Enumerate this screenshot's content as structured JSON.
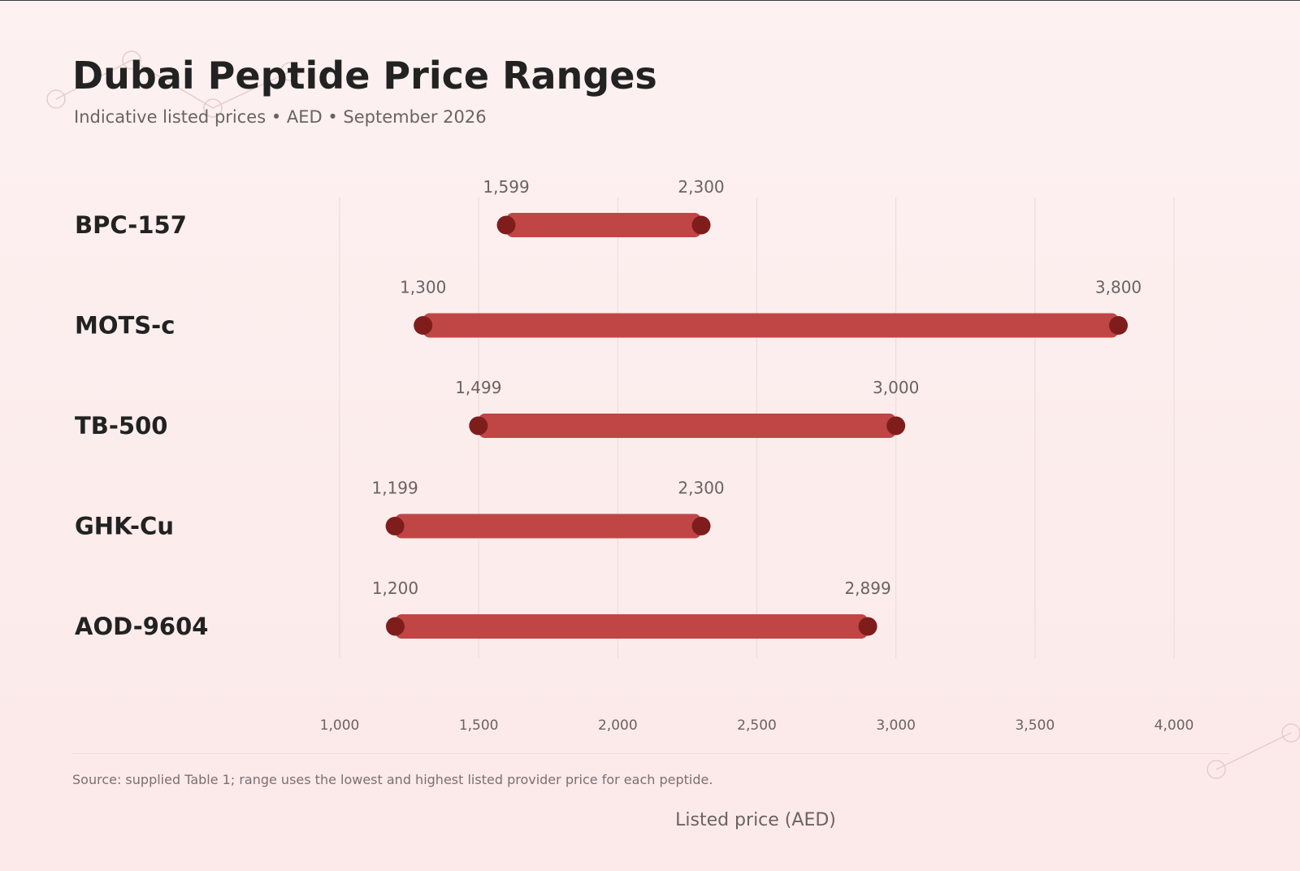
{
  "header": {
    "title": "Dubai Peptide Price Ranges",
    "subtitle": "Indicative listed prices • AED • September 2026"
  },
  "footer": {
    "source_note": "Source: supplied Table 1; range uses the lowest and highest listed provider price for each peptide."
  },
  "colors": {
    "bar": "#c04646",
    "endpoint": "#7f1d1d",
    "grid": "#eadada",
    "label_text": "#222222",
    "value_text": "#6b6262",
    "tick_text": "#6b6262",
    "decor": "#e6cccc"
  },
  "chart_data": {
    "type": "range-bar",
    "orientation": "horizontal",
    "title": "Dubai Peptide Price Ranges",
    "subtitle": "Indicative listed prices • AED • September 2026",
    "xlabel": "Listed price (AED)",
    "ylabel": "",
    "xlim": [
      1000,
      4000
    ],
    "xticks": [
      1000,
      1500,
      2000,
      2500,
      3000,
      3500,
      4000
    ],
    "xtick_labels": [
      "1,000",
      "1,500",
      "2,000",
      "2,500",
      "3,000",
      "3,500",
      "4,000"
    ],
    "grid": "vertical",
    "categories": [
      "BPC-157",
      "MOTS-c",
      "TB-500",
      "GHK-Cu",
      "AOD-9604"
    ],
    "ranges": [
      {
        "name": "BPC-157",
        "low": 1599,
        "high": 2300,
        "low_label": "1,599",
        "high_label": "2,300"
      },
      {
        "name": "MOTS-c",
        "low": 1300,
        "high": 3800,
        "low_label": "1,300",
        "high_label": "3,800"
      },
      {
        "name": "TB-500",
        "low": 1499,
        "high": 3000,
        "low_label": "1,499",
        "high_label": "3,000"
      },
      {
        "name": "GHK-Cu",
        "low": 1199,
        "high": 2300,
        "low_label": "1,199",
        "high_label": "2,300"
      },
      {
        "name": "AOD-9604",
        "low": 1200,
        "high": 2899,
        "low_label": "1,200",
        "high_label": "2,899"
      }
    ]
  }
}
